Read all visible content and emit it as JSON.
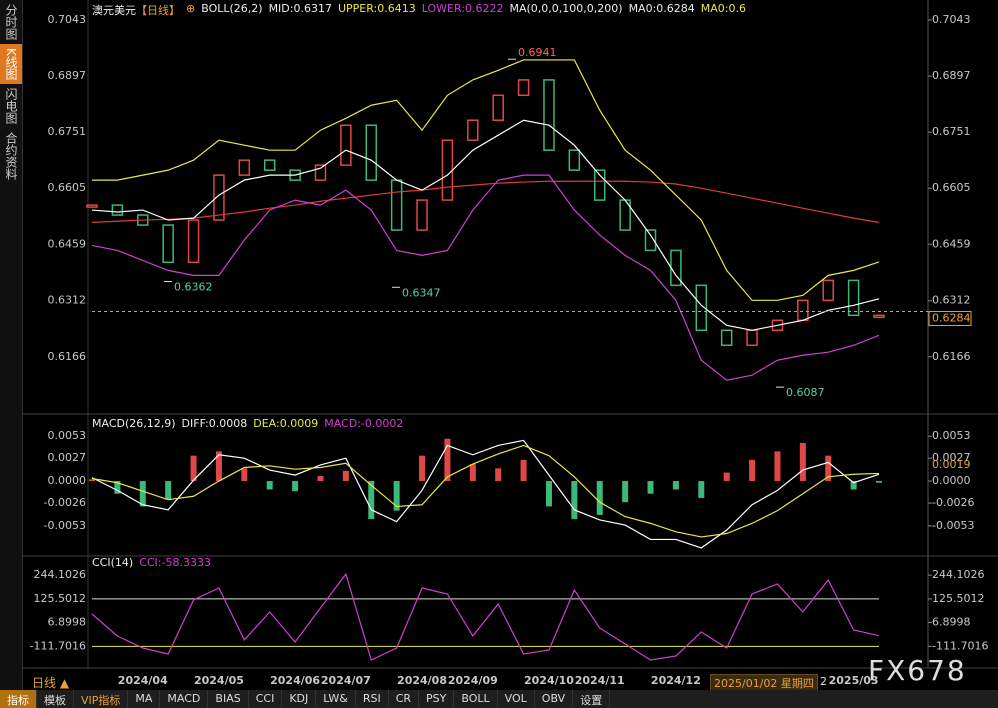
{
  "sidebar_tabs": [
    "分时图",
    "K线图",
    "闪电图",
    "合约资料"
  ],
  "header": {
    "symbol": "澳元美元",
    "period": "【日线】",
    "icon": "⊕",
    "boll": "BOLL(26,2)",
    "mid": "MID:0.6317",
    "upper": "UPPER:0.6413",
    "lower": "LOWER:0.6222",
    "ma": "MA(0,0,0,100,0,200)",
    "ma0": "MA0:0.6284",
    "ma1": "MA0:0.6"
  },
  "macd_header": {
    "name": "MACD(26,12,9)",
    "diff": "DIFF:0.0008",
    "dea": "DEA:0.0009",
    "macd": "MACD:-0.0002"
  },
  "cci_header": {
    "name": "CCI(14)",
    "cci": "CCI:-58.3333"
  },
  "chart_data": [
    {
      "type": "line",
      "ylim": [
        0.603,
        0.7043
      ],
      "yticks": [
        0.7043,
        0.6897,
        0.6751,
        0.6605,
        0.6459,
        0.6312,
        0.6166
      ],
      "price_line": 0.6284,
      "price_line_color": "#f0a030",
      "annotations": [
        0.6941,
        0.6362,
        0.6347,
        0.6087
      ],
      "series": [
        {
          "style": "body",
          "up_color": "#e04848",
          "down_color": "#3cb878",
          "values": [
            0.6561,
            0.6535,
            0.6509,
            0.6412,
            0.6522,
            0.6639,
            0.6678,
            0.6652,
            0.6626,
            0.6665,
            0.6769,
            0.6626,
            0.6496,
            0.6574,
            0.673,
            0.6782,
            0.6847,
            0.6887,
            0.6704,
            0.6652,
            0.6574,
            0.6496,
            0.6443,
            0.6352,
            0.6235,
            0.6196,
            0.6235,
            0.6261,
            0.6313,
            0.6365,
            0.6274,
            0.6274
          ]
        },
        {
          "style": "line",
          "color": "#e03c3c",
          "values": [
            0.6516,
            0.6519,
            0.6522,
            0.6524,
            0.6527,
            0.6535,
            0.6543,
            0.6553,
            0.6561,
            0.6571,
            0.6579,
            0.6587,
            0.6595,
            0.66,
            0.6608,
            0.6613,
            0.6618,
            0.6621,
            0.6623,
            0.6623,
            0.6623,
            0.6623,
            0.6621,
            0.6616,
            0.6605,
            0.6592,
            0.6579,
            0.6566,
            0.6553,
            0.654,
            0.6527,
            0.6516
          ]
        },
        {
          "style": "line",
          "color": "#ffffff",
          "values": [
            0.6548,
            0.6543,
            0.6548,
            0.6522,
            0.6527,
            0.6587,
            0.6626,
            0.6639,
            0.6639,
            0.6657,
            0.6704,
            0.6678,
            0.6626,
            0.66,
            0.6639,
            0.6704,
            0.6743,
            0.6782,
            0.6769,
            0.6717,
            0.6639,
            0.6574,
            0.6483,
            0.6378,
            0.63,
            0.6248,
            0.6235,
            0.6248,
            0.6261,
            0.6287,
            0.63,
            0.6317
          ]
        },
        {
          "style": "line",
          "color": "#e8e84a",
          "values": [
            0.6626,
            0.6626,
            0.6639,
            0.6652,
            0.6678,
            0.673,
            0.6717,
            0.6704,
            0.6704,
            0.6756,
            0.6787,
            0.6821,
            0.6834,
            0.6756,
            0.6847,
            0.6887,
            0.6912,
            0.6939,
            0.6939,
            0.6939,
            0.6808,
            0.6704,
            0.6652,
            0.6587,
            0.6522,
            0.6391,
            0.6313,
            0.6313,
            0.6326,
            0.6378,
            0.6391,
            0.6413
          ]
        },
        {
          "style": "line",
          "color": "#d040d0",
          "values": [
            0.6456,
            0.6443,
            0.6417,
            0.6391,
            0.6378,
            0.6378,
            0.647,
            0.6548,
            0.6574,
            0.6561,
            0.66,
            0.6548,
            0.6443,
            0.643,
            0.6443,
            0.6548,
            0.6626,
            0.6639,
            0.6639,
            0.6548,
            0.6483,
            0.643,
            0.6391,
            0.6313,
            0.6157,
            0.6105,
            0.6118,
            0.6157,
            0.617,
            0.6178,
            0.6196,
            0.6222
          ]
        }
      ]
    },
    {
      "type": "bar",
      "ylim": [
        -0.0085,
        0.0065
      ],
      "yticks": [
        0.0053,
        0.0027,
        {
          "value": 0,
          "label": "0.0000"
        },
        -0.0026,
        -0.0053
      ],
      "last_label": 0.0019,
      "series": [
        {
          "style": "bar",
          "up_color": "#e04848",
          "down_color": "#3cb878",
          "values": [
            0.0002,
            -0.0015,
            -0.003,
            -0.0022,
            0.003,
            0.0035,
            0.0015,
            -0.001,
            -0.0012,
            0.0006,
            0.0012,
            -0.0045,
            -0.0035,
            0.003,
            0.005,
            0.002,
            0.0015,
            0.0025,
            -0.003,
            -0.0045,
            -0.004,
            -0.0025,
            -0.0015,
            -0.001,
            -0.002,
            0.001,
            0.0025,
            0.0035,
            0.0045,
            0.003,
            -0.001,
            -0.0002
          ]
        },
        {
          "style": "line",
          "color": "#ffffff",
          "values": [
            0.0004,
            -0.0011,
            -0.0028,
            -0.0034,
            0.0001,
            0.0031,
            0.0027,
            0.0013,
            0.0007,
            0.0019,
            0.0027,
            -0.0034,
            -0.0048,
            -0.0011,
            0.0042,
            0.0031,
            0.0042,
            0.0048,
            0.0007,
            -0.0034,
            -0.0046,
            -0.0052,
            -0.0069,
            -0.0069,
            -0.0079,
            -0.0058,
            -0.0028,
            -0.0011,
            0.0013,
            0.0022,
            -0.0002,
            0.0008
          ]
        },
        {
          "style": "line",
          "color": "#e8e84a",
          "values": [
            0.0003,
            -0.0002,
            -0.0012,
            -0.0022,
            -0.0018,
            0,
            0.0016,
            0.0018,
            0.0014,
            0.0016,
            0.0021,
            -0.0005,
            -0.003,
            -0.0028,
            0.0005,
            0.002,
            0.0032,
            0.0042,
            0.003,
            0.0005,
            -0.0025,
            -0.0042,
            -0.005,
            -0.006,
            -0.0066,
            -0.0062,
            -0.005,
            -0.0035,
            -0.0015,
            0.0005,
            0.0008,
            0.0009
          ]
        }
      ]
    },
    {
      "type": "line",
      "ylim": [
        -200,
        290
      ],
      "yticks": [
        244.1026,
        125.5012,
        6.8998,
        -111.7016
      ],
      "reference_lines": [
        {
          "value": 125.5012,
          "color": "#dddddd"
        },
        {
          "value": -111.7016,
          "color": "#e8e84a"
        }
      ],
      "categories": [
        null,
        null,
        "2024/04",
        null,
        null,
        "2024/05",
        null,
        null,
        "2024/06",
        null,
        "2024/07",
        null,
        null,
        "2024/08",
        null,
        "2024/09",
        null,
        null,
        "2024/10",
        null,
        "2024/11",
        null,
        null,
        "2024/12",
        null,
        null,
        null,
        null,
        null,
        null,
        "2025/03",
        null
      ],
      "series": [
        {
          "style": "line",
          "color": "#d040d0",
          "values": [
            50,
            -60,
            -120,
            -150,
            120,
            180,
            -80,
            60,
            -90,
            80,
            250,
            -180,
            -120,
            180,
            150,
            -60,
            100,
            -150,
            -130,
            170,
            -20,
            -100,
            -180,
            -160,
            -40,
            -120,
            150,
            200,
            60,
            220,
            -30,
            -58.3333
          ]
        }
      ]
    }
  ],
  "cursor_label": "2025/01/02 星期四",
  "cursor_tail": "2",
  "period_label": "日线 ▲",
  "watermark": "FX678",
  "toolbar": [
    "指标",
    "模板",
    "VIP指标",
    "MA",
    "MACD",
    "BIAS",
    "CCI",
    "KDJ",
    "LW&",
    "RSI",
    "CR",
    "PSY",
    "BOLL",
    "VOL",
    "OBV",
    "设置"
  ]
}
